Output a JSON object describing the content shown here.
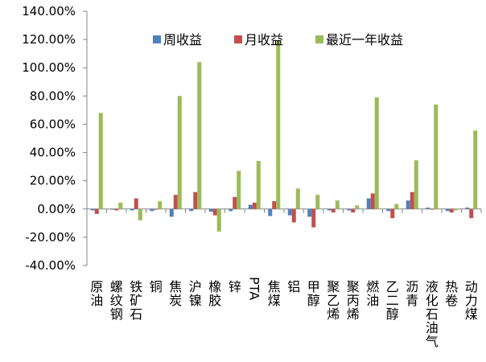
{
  "chart_data": {
    "type": "bar",
    "categories": [
      "原油",
      "螺纹钢",
      "铁矿石",
      "铜",
      "焦炭",
      "沪镍",
      "橡胶",
      "锌",
      "PTA",
      "焦煤",
      "铝",
      "甲醇",
      "聚乙烯",
      "聚丙烯",
      "燃油",
      "乙二醇",
      "沥青",
      "液化石油气",
      "热卷",
      "动力煤"
    ],
    "series": [
      {
        "name": "周收益",
        "color": "#4F81BD",
        "values": [
          -1.0,
          -0.5,
          -1.0,
          -1.5,
          -5.5,
          -1.5,
          -2.0,
          -1.5,
          3.0,
          -5.0,
          -4.5,
          -5.5,
          -1.0,
          -1.0,
          7.5,
          -1.5,
          6.0,
          1.0,
          -1.5,
          1.0
        ]
      },
      {
        "name": "月收益",
        "color": "#C0504D",
        "values": [
          -3.5,
          -1.0,
          7.5,
          -0.5,
          10.0,
          12.0,
          -4.5,
          8.5,
          4.5,
          5.5,
          -9.5,
          -13.0,
          -2.5,
          -2.5,
          11.0,
          -6.5,
          12.0,
          -0.5,
          -2.5,
          -6.5
        ]
      },
      {
        "name": "最近一年收益",
        "color": "#9BBB59",
        "values": [
          68.0,
          4.5,
          -8.0,
          5.5,
          80.0,
          104.0,
          -16.0,
          27.0,
          34.0,
          119.0,
          14.5,
          10.0,
          6.0,
          2.5,
          79.0,
          3.5,
          34.5,
          74.0,
          -1.0,
          55.5
        ]
      }
    ],
    "yticks": [
      "140.00%",
      "120.00%",
      "100.00%",
      "80.00%",
      "60.00%",
      "40.00%",
      "20.00%",
      "0.00%",
      "-20.00%",
      "-40.00%"
    ],
    "ylim": [
      -40,
      140
    ],
    "grid": false,
    "legend_position": "top-center"
  }
}
